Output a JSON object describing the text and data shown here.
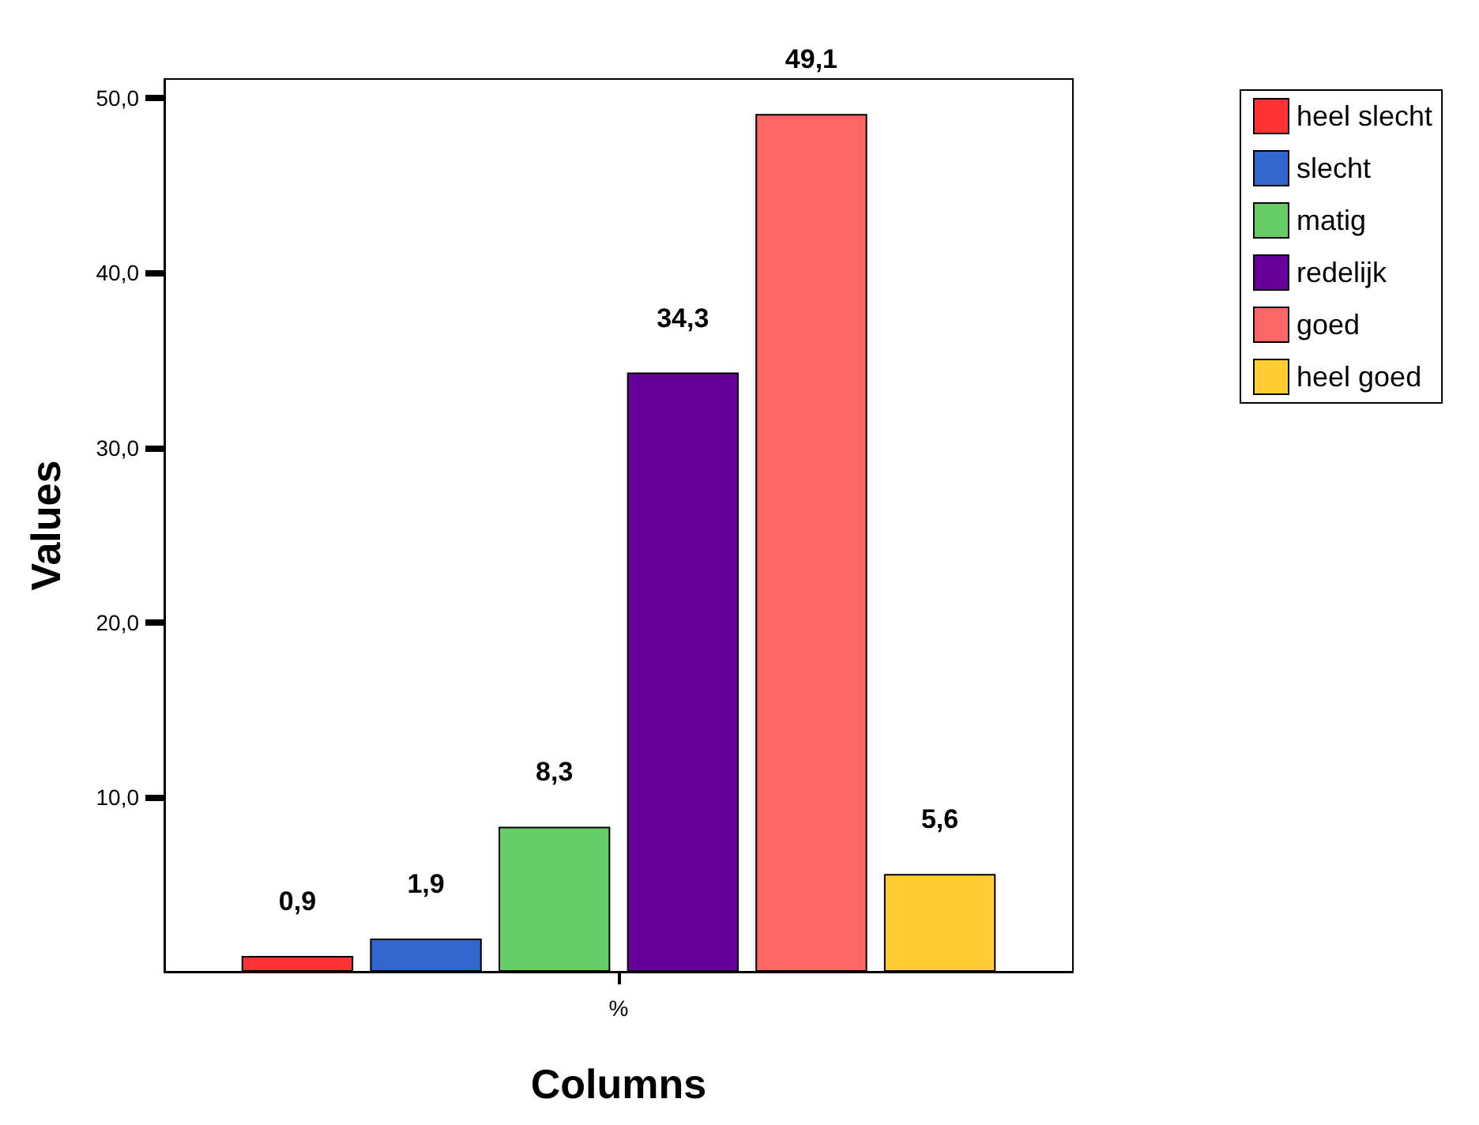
{
  "chart_data": {
    "type": "bar",
    "xlabel": "Columns",
    "ylabel": "Values",
    "categories": [
      "%"
    ],
    "series": [
      {
        "name": "heel slecht",
        "color": "#ff3333",
        "values": [
          0.9
        ],
        "value_labels": [
          "0,9"
        ]
      },
      {
        "name": "slecht",
        "color": "#3366cc",
        "values": [
          1.9
        ],
        "value_labels": [
          "1,9"
        ]
      },
      {
        "name": "matig",
        "color": "#66cc66",
        "values": [
          8.3
        ],
        "value_labels": [
          "8,3"
        ]
      },
      {
        "name": "redelijk",
        "color": "#660099",
        "values": [
          34.3
        ],
        "value_labels": [
          "34,3"
        ]
      },
      {
        "name": "goed",
        "color": "#ff6666",
        "values": [
          49.1
        ],
        "value_labels": [
          "49,1"
        ]
      },
      {
        "name": "heel goed",
        "color": "#ffcc33",
        "values": [
          5.6
        ],
        "value_labels": [
          "5,6"
        ]
      }
    ],
    "ylim": [
      0,
      51.1
    ],
    "yticks": [
      {
        "value": 10,
        "label": "10,0"
      },
      {
        "value": 20,
        "label": "20,0"
      },
      {
        "value": 30,
        "label": "30,0"
      },
      {
        "value": 40,
        "label": "40,0"
      },
      {
        "value": 50,
        "label": "50,0"
      }
    ],
    "grid": false,
    "legend": "top right"
  }
}
